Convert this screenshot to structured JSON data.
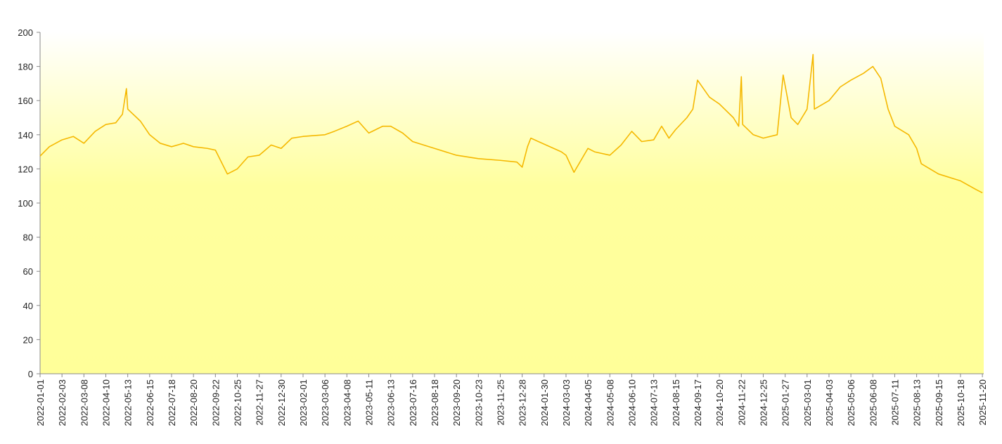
{
  "chart_data": {
    "type": "line",
    "x": [
      "2022-01-01",
      "2022-01-15",
      "2022-02-03",
      "2022-02-20",
      "2022-03-08",
      "2022-03-25",
      "2022-04-10",
      "2022-04-25",
      "2022-05-05",
      "2022-05-11",
      "2022-05-13",
      "2022-06-01",
      "2022-06-15",
      "2022-07-01",
      "2022-07-18",
      "2022-08-05",
      "2022-08-20",
      "2022-09-10",
      "2022-09-22",
      "2022-10-10",
      "2022-10-25",
      "2022-11-10",
      "2022-11-27",
      "2022-12-15",
      "2022-12-30",
      "2023-01-15",
      "2023-02-01",
      "2023-03-06",
      "2023-03-20",
      "2023-04-08",
      "2023-04-25",
      "2023-05-11",
      "2023-06-01",
      "2023-06-13",
      "2023-07-01",
      "2023-07-16",
      "2023-08-18",
      "2023-09-20",
      "2023-10-23",
      "2023-11-25",
      "2023-12-20",
      "2023-12-28",
      "2024-01-05",
      "2024-01-10",
      "2024-02-25",
      "2024-03-03",
      "2024-03-15",
      "2024-04-05",
      "2024-04-15",
      "2024-05-08",
      "2024-05-25",
      "2024-06-10",
      "2024-06-25",
      "2024-07-13",
      "2024-07-25",
      "2024-08-05",
      "2024-08-15",
      "2024-09-01",
      "2024-09-10",
      "2024-09-17",
      "2024-10-05",
      "2024-10-20",
      "2024-11-10",
      "2024-11-18",
      "2024-11-22",
      "2024-11-24",
      "2024-12-10",
      "2024-12-25",
      "2025-01-15",
      "2025-01-24",
      "2025-02-05",
      "2025-02-15",
      "2025-03-01",
      "2025-03-10",
      "2025-03-12",
      "2025-04-03",
      "2025-04-20",
      "2025-05-06",
      "2025-05-25",
      "2025-06-08",
      "2025-06-20",
      "2025-07-01",
      "2025-07-11",
      "2025-08-01",
      "2025-08-13",
      "2025-08-20",
      "2025-09-15",
      "2025-10-18",
      "2025-11-10",
      "2025-11-20"
    ],
    "series": [
      {
        "color": "#f5b800",
        "values": [
          127.5,
          133,
          137,
          139,
          135,
          142,
          146,
          147,
          152,
          167,
          155,
          148,
          140,
          135,
          133,
          135,
          133,
          132,
          131,
          117,
          120,
          127,
          128,
          134,
          132,
          138,
          139,
          140,
          142,
          145,
          148,
          141,
          145,
          145,
          141,
          136,
          132,
          128,
          126,
          125,
          124,
          121,
          133,
          138,
          130,
          128,
          118,
          132,
          130,
          128,
          134,
          142,
          136,
          137,
          145,
          138,
          143,
          150,
          155,
          172,
          162,
          158,
          150,
          145,
          174,
          146,
          140,
          138,
          140,
          175,
          150,
          146,
          155,
          187,
          155,
          160,
          168,
          172,
          176,
          180,
          173,
          155,
          145,
          140,
          132,
          123,
          117,
          113,
          108,
          106
        ]
      }
    ],
    "xlim": [
      "2022-01-01",
      "2025-11-22"
    ],
    "xticks": [
      "2022-01-01",
      "2022-02-03",
      "2022-03-08",
      "2022-04-10",
      "2022-05-13",
      "2022-06-15",
      "2022-07-18",
      "2022-08-20",
      "2022-09-22",
      "2022-10-25",
      "2022-11-27",
      "2022-12-30",
      "2023-02-01",
      "2023-03-06",
      "2023-04-08",
      "2023-05-11",
      "2023-06-13",
      "2023-07-16",
      "2023-08-18",
      "2023-09-20",
      "2023-10-23",
      "2023-11-25",
      "2023-12-28",
      "2024-01-30",
      "2024-03-03",
      "2024-04-05",
      "2024-05-08",
      "2024-06-10",
      "2024-07-13",
      "2024-08-15",
      "2024-09-17",
      "2024-10-20",
      "2024-11-22",
      "2024-12-25",
      "2025-01-27",
      "2025-03-01",
      "2025-04-03",
      "2025-05-06",
      "2025-06-08",
      "2025-07-11",
      "2025-08-13",
      "2025-09-15",
      "2025-10-18",
      "2025-11-20"
    ],
    "ylim": [
      0,
      200
    ],
    "yticks": [
      0,
      20,
      40,
      60,
      80,
      100,
      120,
      140,
      160,
      180,
      200
    ],
    "grid": false
  }
}
